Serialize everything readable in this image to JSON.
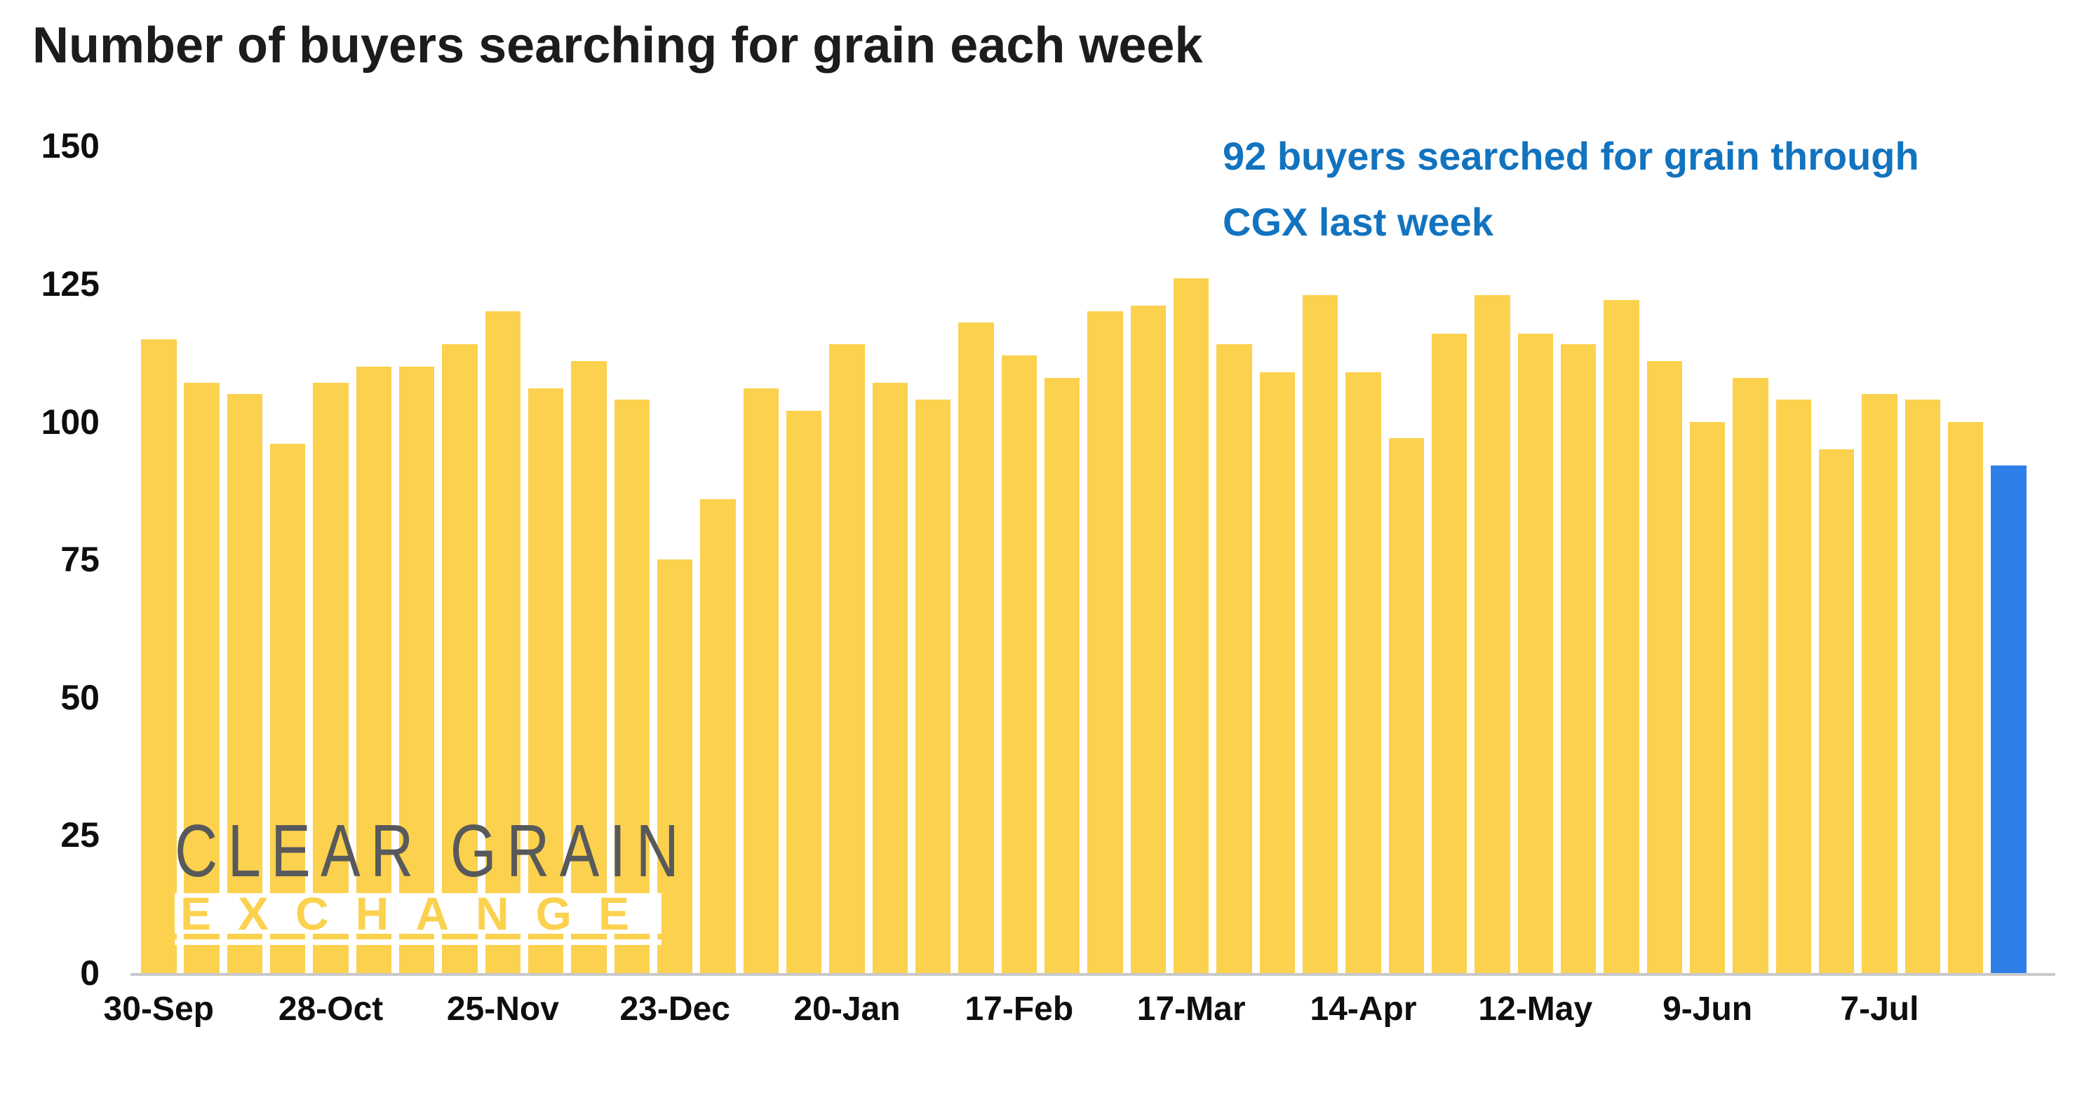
{
  "page": {
    "background": "#FFFFFF"
  },
  "annotation": {
    "line1": "92 buyers searched for grain through",
    "line2": "CGX last week",
    "color": "#1273BF"
  },
  "watermark": {
    "line1": "CLEAR GRAIN",
    "line2": "EXCHANGE",
    "gray_color": "#58595B",
    "yellow_color": "#FBD14E"
  },
  "axis": {
    "line_color": "#C9C9C9",
    "label_color": "#0E0E0E"
  },
  "chart_data": {
    "type": "bar",
    "title": "Number of buyers searching for grain each week",
    "xlabel": "",
    "ylabel": "",
    "ylim": [
      0,
      150
    ],
    "y_ticks": [
      0,
      25,
      50,
      75,
      100,
      125,
      150
    ],
    "grid": false,
    "legend_position": "none",
    "x_tick_labels": [
      {
        "index": 0,
        "label": "30-Sep"
      },
      {
        "index": 4,
        "label": "28-Oct"
      },
      {
        "index": 8,
        "label": "25-Nov"
      },
      {
        "index": 12,
        "label": "23-Dec"
      },
      {
        "index": 16,
        "label": "20-Jan"
      },
      {
        "index": 20,
        "label": "17-Feb"
      },
      {
        "index": 24,
        "label": "17-Mar"
      },
      {
        "index": 28,
        "label": "14-Apr"
      },
      {
        "index": 32,
        "label": "12-May"
      },
      {
        "index": 36,
        "label": "9-Jun"
      },
      {
        "index": 40,
        "label": "7-Jul"
      }
    ],
    "values": [
      115,
      107,
      105,
      96,
      107,
      110,
      110,
      114,
      120,
      106,
      111,
      104,
      75,
      86,
      106,
      102,
      114,
      107,
      104,
      118,
      112,
      108,
      120,
      121,
      126,
      114,
      109,
      123,
      109,
      97,
      116,
      123,
      116,
      114,
      122,
      111,
      100,
      108,
      104,
      95,
      105,
      104,
      100,
      92
    ],
    "bar_color": "#FBD14E",
    "highlight_index": 43,
    "highlight_color": "#2E80E8",
    "highlight_value": 92
  }
}
